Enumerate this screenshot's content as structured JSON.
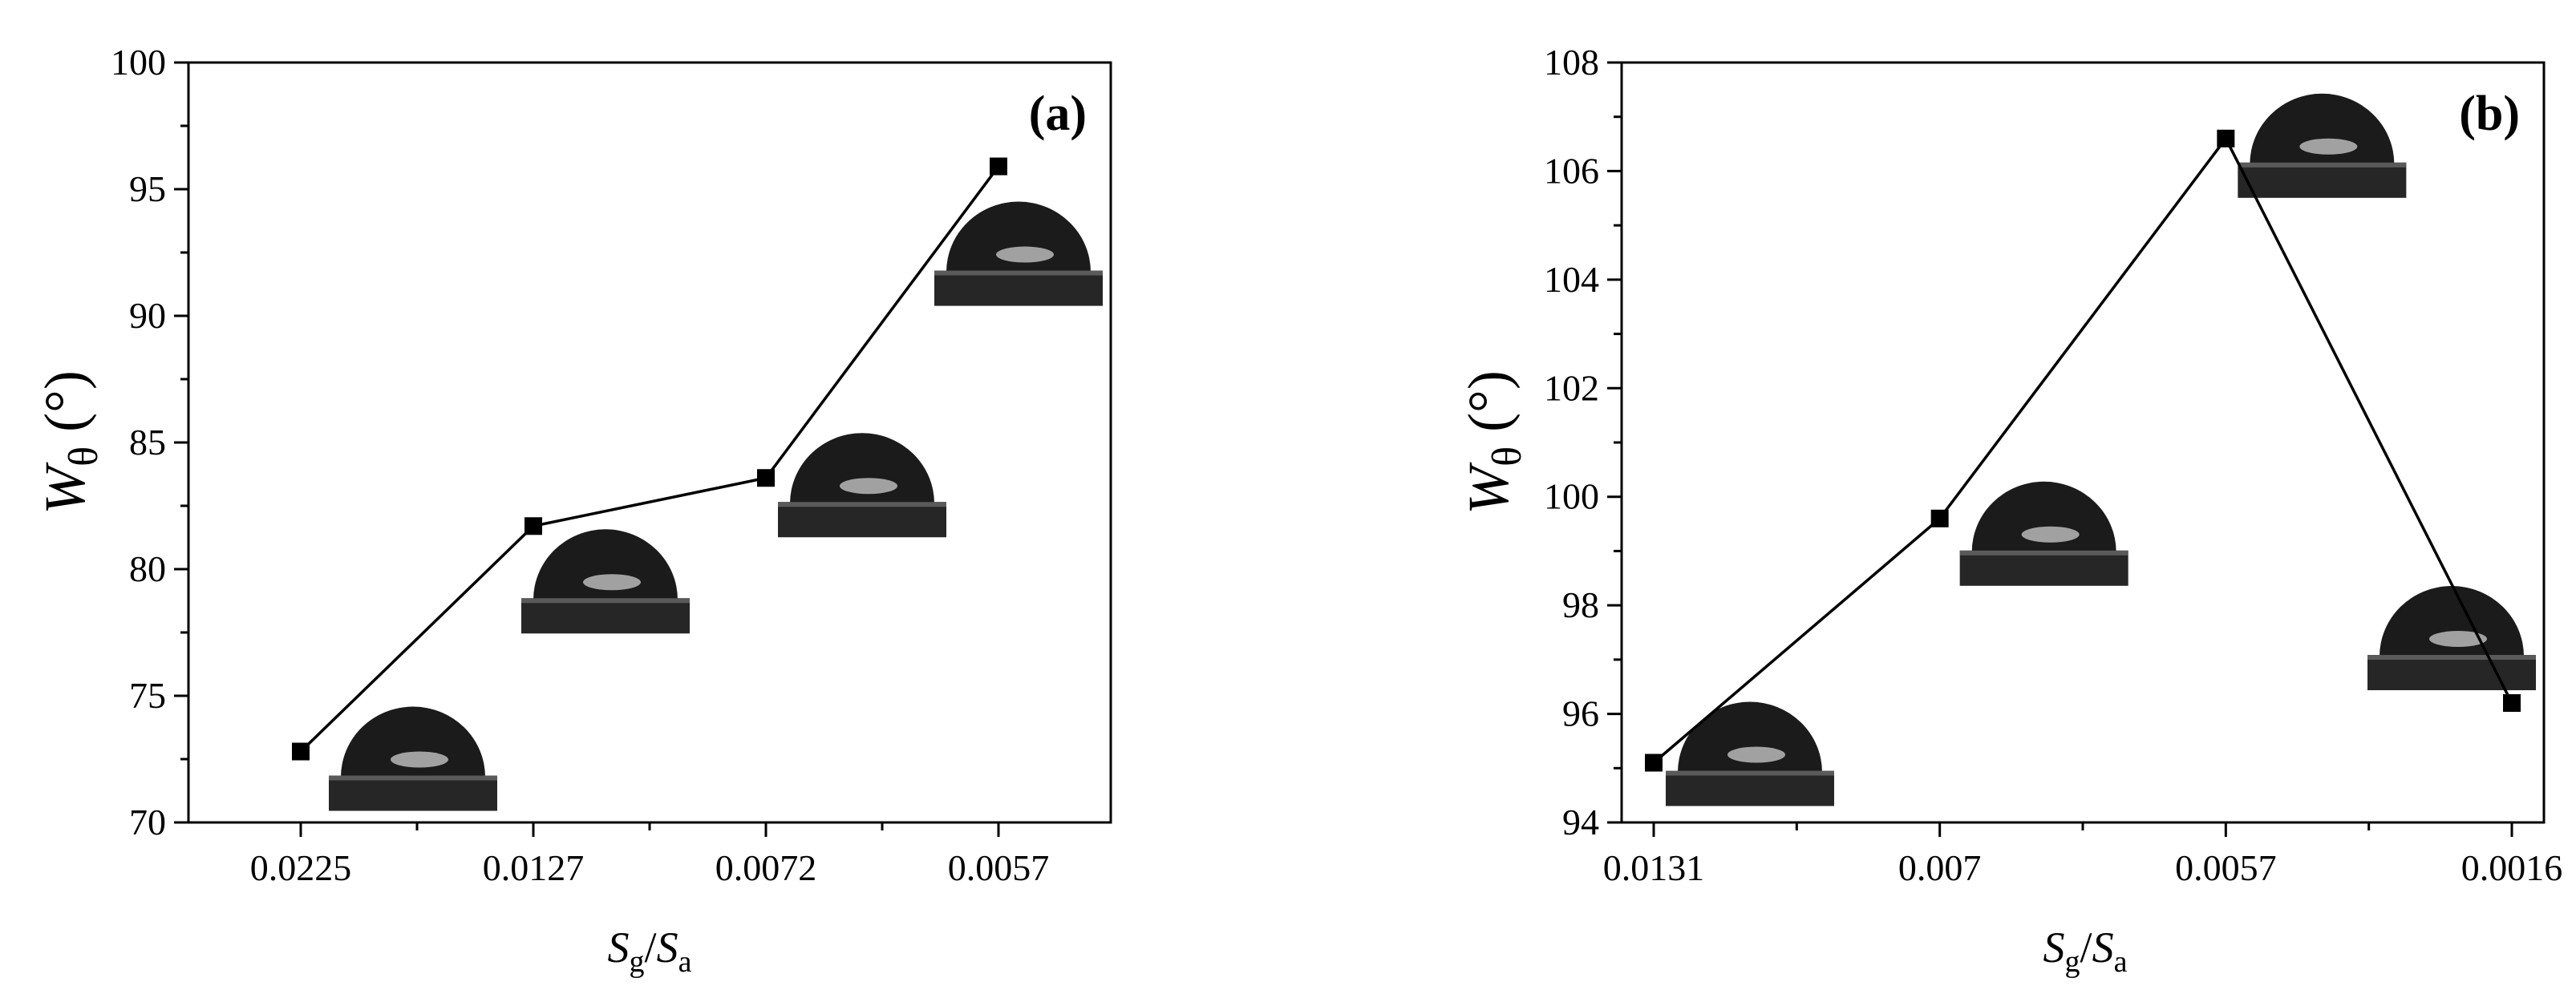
{
  "chart_data": [
    {
      "type": "line",
      "panel_label": "(a)",
      "categories": [
        "0.0225",
        "0.0127",
        "0.0072",
        "0.0057"
      ],
      "series": [
        {
          "values": [
            72.8,
            81.7,
            83.6,
            95.9
          ]
        }
      ],
      "xlabel": {
        "main": "S",
        "sub1": "g",
        "sep": "/",
        "main2": "S",
        "sub2": "a"
      },
      "ylabel": {
        "main": "W",
        "sub": "θ",
        "unit": " (°)"
      },
      "ylim": [
        70,
        100
      ],
      "yticks": [
        "70",
        "75",
        "80",
        "85",
        "90",
        "95",
        "100"
      ],
      "yticks_values": [
        70,
        75,
        80,
        85,
        90,
        95,
        100
      ],
      "marker": "square",
      "grid": false,
      "line_color": "#000000",
      "insets": "water-droplet contact angle photos near each point"
    },
    {
      "type": "line",
      "panel_label": "(b)",
      "categories": [
        "0.0131",
        "0.007",
        "0.0057",
        "0.0016"
      ],
      "series": [
        {
          "values": [
            95.1,
            99.6,
            106.6,
            96.2
          ]
        }
      ],
      "xlabel": {
        "main": "S",
        "sub1": "g",
        "sep": "/",
        "main2": "S",
        "sub2": "a"
      },
      "ylabel": {
        "main": "W",
        "sub": "θ",
        "unit": " (°)"
      },
      "ylim": [
        94,
        108
      ],
      "yticks": [
        "94",
        "96",
        "98",
        "100",
        "102",
        "104",
        "106",
        "108"
      ],
      "yticks_values": [
        94,
        96,
        98,
        100,
        102,
        104,
        106,
        108
      ],
      "marker": "square",
      "grid": false,
      "line_color": "#000000",
      "insets": "water-droplet contact angle photos near each point"
    }
  ]
}
